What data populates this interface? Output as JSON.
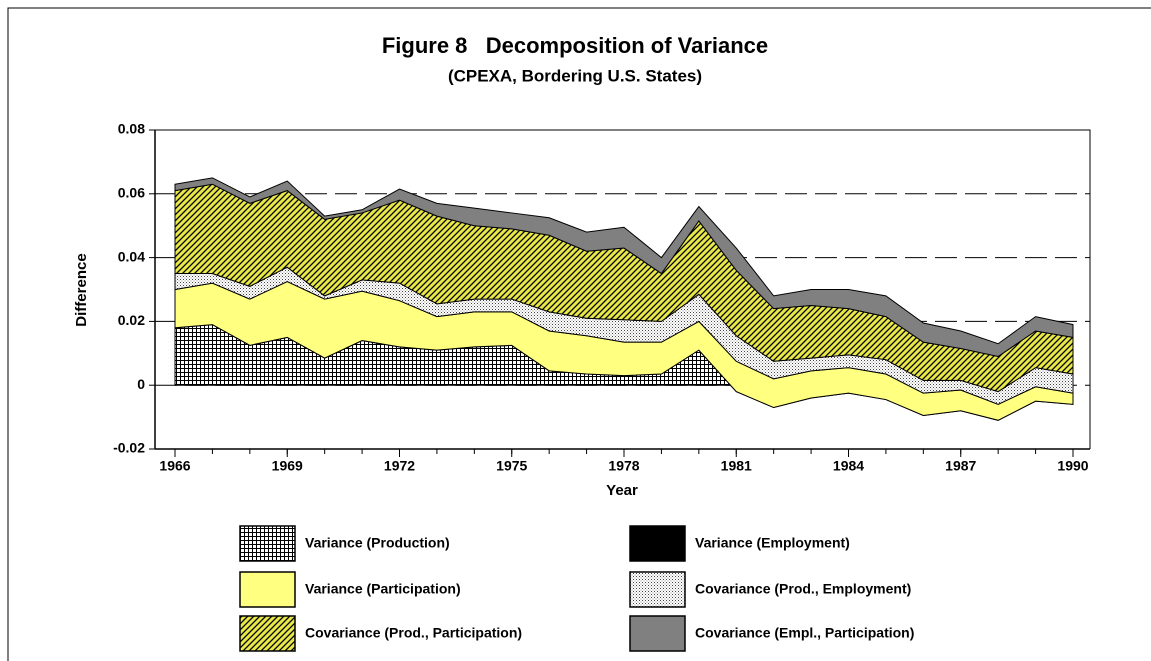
{
  "chart_data": {
    "type": "stacked-area",
    "title": "Figure 8   Decomposition of Variance",
    "subtitle": "(CPEXA, Bordering U.S. States)",
    "x_label": "Year",
    "y_label": "Difference",
    "x": [
      1966,
      1967,
      1968,
      1969,
      1970,
      1971,
      1972,
      1973,
      1974,
      1975,
      1976,
      1977,
      1978,
      1979,
      1980,
      1981,
      1982,
      1983,
      1984,
      1985,
      1986,
      1987,
      1988,
      1989,
      1990
    ],
    "xlim": [
      1966,
      1990
    ],
    "xticks": [
      1966,
      1969,
      1972,
      1975,
      1978,
      1981,
      1984,
      1987,
      1990
    ],
    "ylim": [
      -0.02,
      0.08
    ],
    "yticks": [
      -0.02,
      0,
      0.02,
      0.04,
      0.06,
      0.08
    ],
    "grid": true,
    "series": [
      {
        "name": "Variance (Production)",
        "color": "#ffffff",
        "pattern": "crosshatch",
        "values": [
          0.018,
          0.019,
          0.0125,
          0.015,
          0.0085,
          0.014,
          0.012,
          0.011,
          0.012,
          0.0125,
          0.005,
          0.004,
          0.0035,
          0.004,
          0.011,
          -0.0015,
          -0.006,
          -0.0035,
          -0.002,
          -0.003,
          -0.007,
          -0.006,
          -0.009,
          -0.004,
          -0.0045
        ]
      },
      {
        "name": "Variance (Employment)",
        "color": "#000000",
        "pattern": "solid",
        "values": [
          0,
          0,
          0,
          0,
          0,
          0,
          0,
          0,
          0,
          0,
          -0.0005,
          -0.0005,
          -0.0005,
          -0.0005,
          0,
          -0.0005,
          -0.001,
          -0.0005,
          -0.0005,
          -0.0015,
          -0.0025,
          -0.002,
          -0.002,
          -0.001,
          -0.0015
        ]
      },
      {
        "name": "Variance (Participation)",
        "color": "#ffff80",
        "pattern": "solid",
        "values": [
          0.012,
          0.013,
          0.0145,
          0.0175,
          0.0185,
          0.0155,
          0.0145,
          0.0105,
          0.011,
          0.0105,
          0.0125,
          0.012,
          0.0105,
          0.01,
          0.009,
          0.0095,
          0.009,
          0.0085,
          0.008,
          0.008,
          0.007,
          0.0065,
          0.005,
          0.0045,
          0.0035
        ]
      },
      {
        "name": "Covariance (Prod., Employment)",
        "color": "#ffffff",
        "pattern": "dots",
        "values": [
          0.005,
          0.003,
          0.004,
          0.0045,
          0.001,
          0.0035,
          0.0055,
          0.004,
          0.004,
          0.004,
          0.006,
          0.0055,
          0.007,
          0.0065,
          0.0085,
          0.008,
          0.0055,
          0.004,
          0.004,
          0.0045,
          0.004,
          0.003,
          0.004,
          0.006,
          0.006
        ]
      },
      {
        "name": "Covariance (Prod., Participation)",
        "color": "#e8e84a",
        "pattern": "hatch",
        "values": [
          0.026,
          0.028,
          0.026,
          0.024,
          0.024,
          0.021,
          0.026,
          0.0275,
          0.023,
          0.022,
          0.024,
          0.021,
          0.0225,
          0.015,
          0.023,
          0.0205,
          0.0165,
          0.0165,
          0.0145,
          0.0135,
          0.012,
          0.01,
          0.011,
          0.0115,
          0.0115
        ]
      },
      {
        "name": "Covariance (Empl., Participation)",
        "color": "#808080",
        "pattern": "solid",
        "values": [
          0.002,
          0.002,
          0.002,
          0.003,
          0.001,
          0.001,
          0.0035,
          0.004,
          0.0055,
          0.005,
          0.0055,
          0.006,
          0.0065,
          0.005,
          0.0045,
          0.007,
          0.004,
          0.005,
          0.006,
          0.0065,
          0.006,
          0.0055,
          0.004,
          0.0045,
          0.004
        ]
      }
    ]
  }
}
